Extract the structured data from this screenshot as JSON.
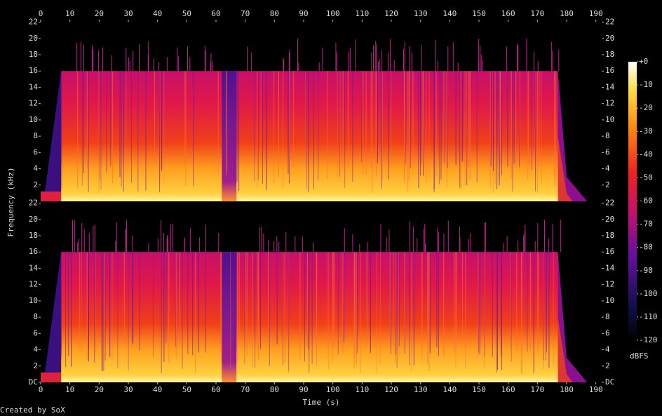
{
  "chart_data": {
    "type": "spectrogram",
    "x_label": "Time (s)",
    "y_label": "Frequency (kHz)",
    "footer": "Created by SoX",
    "xlim": [
      0,
      192
    ],
    "xticks": [
      0,
      10,
      20,
      30,
      40,
      50,
      60,
      70,
      80,
      90,
      100,
      110,
      120,
      130,
      140,
      150,
      160,
      170,
      180,
      190
    ],
    "ylim": [
      0,
      22.05
    ],
    "grid": false,
    "channels": [
      {
        "yticks": [
          2,
          4,
          6,
          8,
          10,
          12,
          14,
          16,
          18,
          20,
          22
        ]
      },
      {
        "yticks": [
          {
            "value": 0,
            "label": "DC"
          },
          2,
          4,
          6,
          8,
          10,
          12,
          14,
          16,
          18,
          20,
          22
        ]
      }
    ],
    "colorbar": {
      "label": "dBFS",
      "lim": [
        -120,
        0
      ],
      "ticks": [
        {
          "value": 0,
          "label": "+0"
        },
        -10,
        -20,
        -30,
        -40,
        -50,
        -60,
        -70,
        -80,
        -90,
        -100,
        -110,
        -120
      ]
    }
  }
}
